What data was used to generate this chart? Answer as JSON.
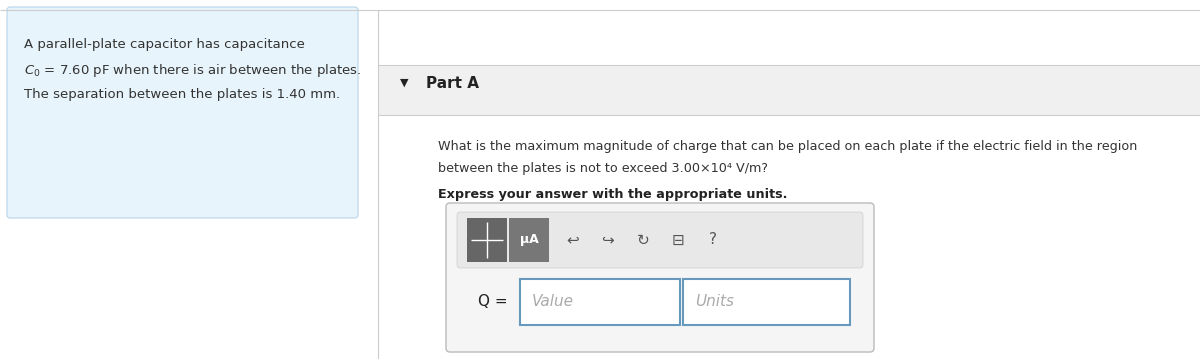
{
  "bg_color": "#ffffff",
  "left_box_bg": "#e8f4fb",
  "left_box_border": "#b8d4e8",
  "text_color": "#333333",
  "dark_text": "#222222",
  "placeholder_color": "#aaaaaa",
  "divider_color": "#cccccc",
  "toolbar_bg": "#e8e8e8",
  "toolbar_border": "#cccccc",
  "input_border": "#6699bb",
  "outer_box_bg": "#f5f5f5",
  "outer_box_border": "#bbbbbb",
  "left_text_line1": "A parallel-plate capacitor has capacitance",
  "left_text_line2": "$C_0$ = 7.60 pF when there is air between the plates.",
  "left_text_line3": "The separation between the plates is 1.40 mm.",
  "part_a_label": "Part A",
  "question_line1": "What is the maximum magnitude of charge that can be placed on each plate if the electric field in the region",
  "question_line2": "between the plates is not to exceed 3.00×10⁴ V/m?",
  "bold_line": "Express your answer with the appropriate units.",
  "value_placeholder": "Value",
  "units_placeholder": "Units",
  "q_label": "Q ="
}
